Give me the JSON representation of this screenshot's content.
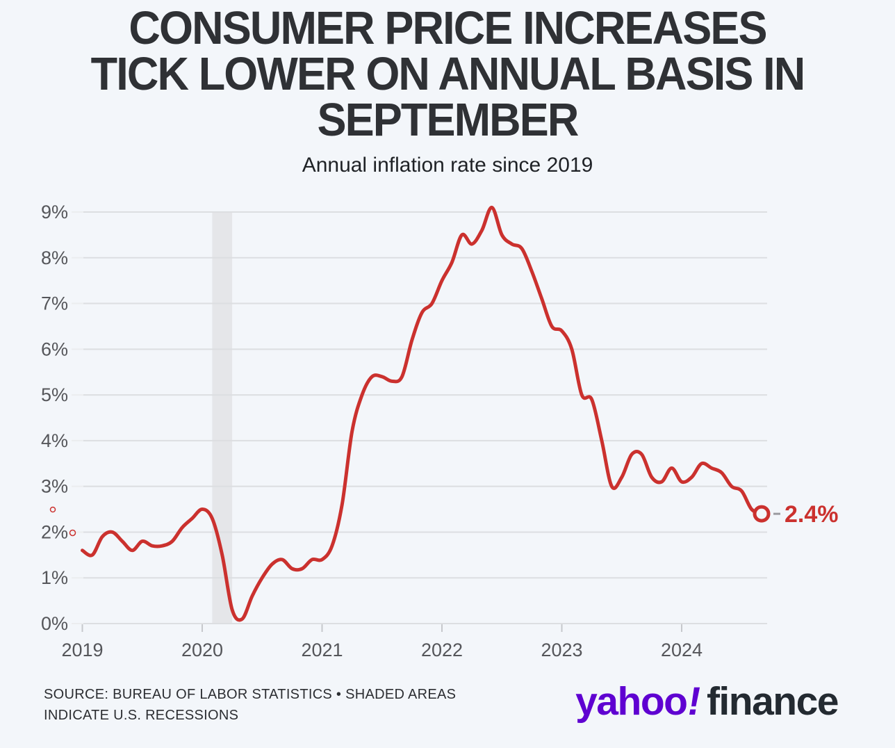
{
  "header": {
    "title": "CONSUMER PRICE INCREASES TICK LOWER ON ANNUAL BASIS IN SEPTEMBER",
    "title_lines": [
      "CONSUMER PRICE INCREASES",
      "TICK LOWER ON ANNUAL BASIS IN",
      "SEPTEMBER"
    ],
    "subtitle": "Annual inflation rate since 2019"
  },
  "chart_data": {
    "type": "line",
    "title": "Annual inflation rate since 2019",
    "unit": "%",
    "ylim": [
      0,
      9
    ],
    "grid": true,
    "y_ticks": [
      0,
      1,
      2,
      3,
      4,
      5,
      6,
      7,
      8,
      9
    ],
    "tick_suffix": "%",
    "x_ticks": [
      2019,
      2020,
      2021,
      2022,
      2023,
      2024
    ],
    "months": [
      "2019-01",
      "2019-02",
      "2019-03",
      "2019-04",
      "2019-05",
      "2019-06",
      "2019-07",
      "2019-08",
      "2019-09",
      "2019-10",
      "2019-11",
      "2019-12",
      "2020-01",
      "2020-02",
      "2020-03",
      "2020-04",
      "2020-05",
      "2020-06",
      "2020-07",
      "2020-08",
      "2020-09",
      "2020-10",
      "2020-11",
      "2020-12",
      "2021-01",
      "2021-02",
      "2021-03",
      "2021-04",
      "2021-05",
      "2021-06",
      "2021-07",
      "2021-08",
      "2021-09",
      "2021-10",
      "2021-11",
      "2021-12",
      "2022-01",
      "2022-02",
      "2022-03",
      "2022-04",
      "2022-05",
      "2022-06",
      "2022-07",
      "2022-08",
      "2022-09",
      "2022-10",
      "2022-11",
      "2022-12",
      "2023-01",
      "2023-02",
      "2023-03",
      "2023-04",
      "2023-05",
      "2023-06",
      "2023-07",
      "2023-08",
      "2023-09",
      "2023-10",
      "2023-11",
      "2023-12",
      "2024-01",
      "2024-02",
      "2024-03",
      "2024-04",
      "2024-05",
      "2024-06",
      "2024-07",
      "2024-08",
      "2024-09"
    ],
    "values": [
      1.6,
      1.5,
      1.9,
      2.0,
      1.8,
      1.6,
      1.8,
      1.7,
      1.7,
      1.8,
      2.1,
      2.3,
      2.5,
      2.3,
      1.5,
      0.3,
      0.1,
      0.6,
      1.0,
      1.3,
      1.4,
      1.2,
      1.2,
      1.4,
      1.4,
      1.7,
      2.6,
      4.2,
      5.0,
      5.4,
      5.4,
      5.3,
      5.4,
      6.2,
      6.8,
      7.0,
      7.5,
      7.9,
      8.5,
      8.3,
      8.6,
      9.1,
      8.5,
      8.3,
      8.2,
      7.7,
      7.1,
      6.5,
      6.4,
      6.0,
      5.0,
      4.9,
      4.0,
      3.0,
      3.2,
      3.7,
      3.7,
      3.2,
      3.1,
      3.4,
      3.1,
      3.2,
      3.5,
      3.4,
      3.3,
      3.0,
      2.9,
      2.5,
      2.4
    ],
    "recession_bands": [
      {
        "from": "2020-02",
        "to": "2020-04"
      }
    ],
    "end_point_label": "2.4%",
    "legend_position": "none",
    "stray_markers": [
      {
        "x": 76,
        "y": 733,
        "r": 3.5
      },
      {
        "x": 104.5,
        "y": 766.5,
        "r": 4
      }
    ],
    "colors": {
      "line": "#cb312e",
      "end_label": "#cb312e",
      "grid": "#dcdee1",
      "grid_stub": "#ebedef",
      "axis_tick": "#c6c8cc",
      "axis_text": "#55565a",
      "recession": "#e5e6e9",
      "background": "#f3f6fa",
      "leader_dash": "#9b9ba0"
    }
  },
  "footer": {
    "source_line1": "SOURCE: BUREAU OF LABOR STATISTICS • SHADED AREAS",
    "source_line2": "INDICATE U.S. RECESSIONS",
    "logo": {
      "yahoo": "yahoo",
      "exclamation": "!",
      "finance": "finance",
      "yahoo_color": "#5f01d1",
      "finance_color": "#232a31"
    }
  }
}
